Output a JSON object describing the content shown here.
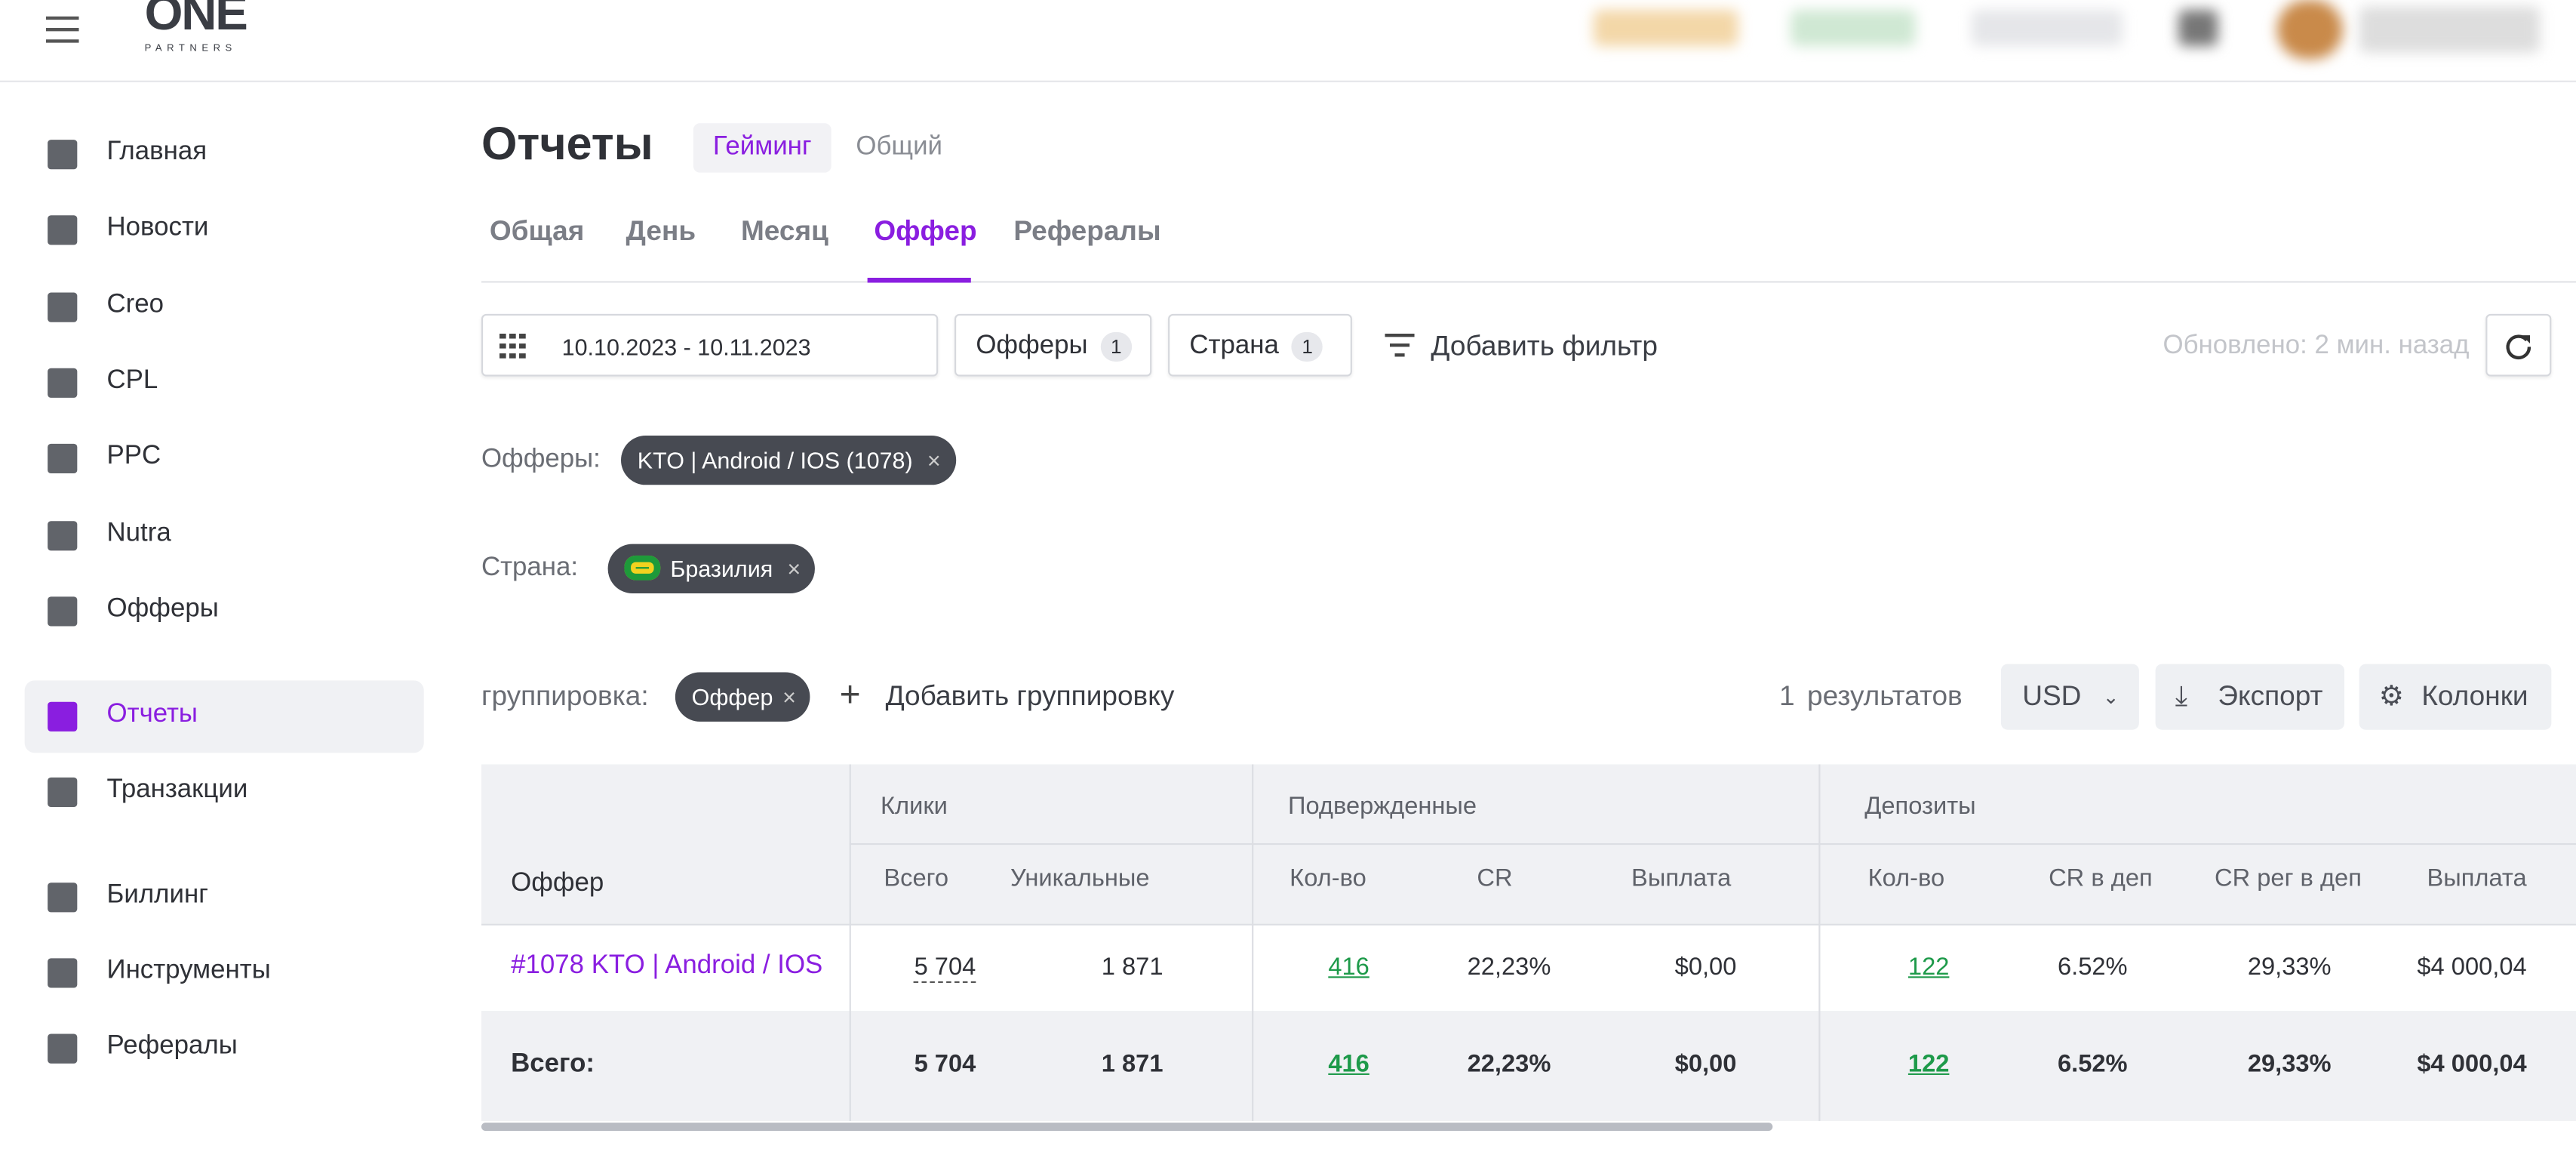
{
  "logo": {
    "name": "ONE",
    "sub": "PARTNERS"
  },
  "nav": [
    "Главная",
    "Новости",
    "Creo",
    "CPL",
    "PPC",
    "Nutra",
    "Офферы",
    "Отчеты",
    "Транзакции",
    "Биллинг",
    "Инструменты",
    "Рефералы"
  ],
  "page": {
    "title": "Отчеты",
    "modes": [
      "Гейминг",
      "Общий"
    ],
    "tabs": [
      "Общая",
      "День",
      "Месяц",
      "Оффер",
      "Рефералы"
    ]
  },
  "filters": {
    "date": "10.10.2023 - 10.11.2023",
    "offers": {
      "label": "Офферы",
      "count": "1"
    },
    "country": {
      "label": "Страна",
      "count": "1"
    },
    "add": "Добавить фильтр",
    "updated": "Обновлено: 2 мин. назад"
  },
  "applied": [
    {
      "label": "Офферы:",
      "chip": "KTO | Android / IOS (1078)"
    },
    {
      "label": "Страна:",
      "chip": "Бразилия"
    }
  ],
  "grouping": {
    "label": "группировка:",
    "chip": "Оффер",
    "add": "Добавить группировку",
    "count": "1",
    "results": "результатов",
    "currency": "USD",
    "export": "Экспорт",
    "columns": "Колонки"
  },
  "table": {
    "groups": [
      "Клики",
      "Подвержденные",
      "Депозиты"
    ],
    "columns": [
      "Оффер",
      "Всего",
      "Уникальные",
      "Кол-во",
      "CR",
      "Выплата",
      "Кол-во",
      "CR в деп",
      "CR рег в деп",
      "Выплата"
    ],
    "rows": [
      [
        "#1078 KTO | Android / IOS",
        "5 704",
        "1 871",
        "416",
        "22,23%",
        "$0,00",
        "122",
        "6.52%",
        "29,33%",
        "$4 000,04"
      ],
      [
        "Всего:",
        "5 704",
        "1 871",
        "416",
        "22,23%",
        "$0,00",
        "122",
        "6.52%",
        "29,33%",
        "$4 000,04"
      ]
    ]
  }
}
